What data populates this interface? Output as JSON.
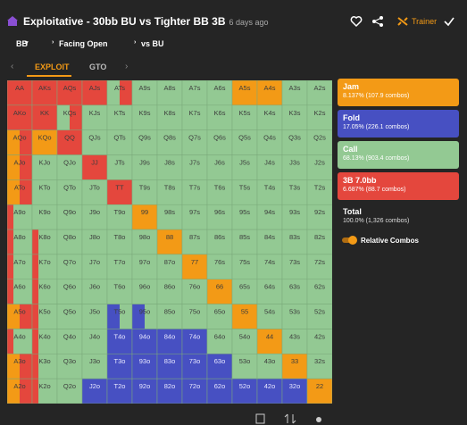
{
  "header": {
    "title": "Exploitative - 30bb BU vs Tighter BB 3B",
    "time": "6 days ago",
    "trainer": "Trainer"
  },
  "filters": [
    "BB",
    "Facing Open",
    "vs BU"
  ],
  "tabs": [
    "EXPLOIT",
    "GTO"
  ],
  "action_colors": {
    "r": "#e4473d",
    "o": "#f39a16",
    "g": "#93c993",
    "f": "#4750c2"
  },
  "grid": {
    "rows": [
      [
        "AA",
        "AKs",
        "AQs",
        "AJs",
        "ATs",
        "A9s",
        "A8s",
        "A7s",
        "A6s",
        "A5s",
        "A4s",
        "A3s",
        "A2s"
      ],
      [
        "AKo",
        "KK",
        "KQs",
        "KJs",
        "KTs",
        "K9s",
        "K8s",
        "K7s",
        "K6s",
        "K5s",
        "K4s",
        "K3s",
        "K2s"
      ],
      [
        "AQo",
        "KQo",
        "QQ",
        "QJs",
        "QTs",
        "Q9s",
        "Q8s",
        "Q7s",
        "Q6s",
        "Q5s",
        "Q4s",
        "Q3s",
        "Q2s"
      ],
      [
        "AJo",
        "KJo",
        "QJo",
        "JJ",
        "JTs",
        "J9s",
        "J8s",
        "J7s",
        "J6s",
        "J5s",
        "J4s",
        "J3s",
        "J2s"
      ],
      [
        "ATo",
        "KTo",
        "QTo",
        "JTo",
        "TT",
        "T9s",
        "T8s",
        "T7s",
        "T6s",
        "T5s",
        "T4s",
        "T3s",
        "T2s"
      ],
      [
        "A9o",
        "K9o",
        "Q9o",
        "J9o",
        "T9o",
        "99",
        "98s",
        "97s",
        "96s",
        "95s",
        "94s",
        "93s",
        "92s"
      ],
      [
        "A8o",
        "K8o",
        "Q8o",
        "J8o",
        "T8o",
        "98o",
        "88",
        "87s",
        "86s",
        "85s",
        "84s",
        "83s",
        "82s"
      ],
      [
        "A7o",
        "K7o",
        "Q7o",
        "J7o",
        "T7o",
        "97o",
        "87o",
        "77",
        "76s",
        "75s",
        "74s",
        "73s",
        "72s"
      ],
      [
        "A6o",
        "K6o",
        "Q6o",
        "J6o",
        "T6o",
        "96o",
        "86o",
        "76o",
        "66",
        "65s",
        "64s",
        "63s",
        "62s"
      ],
      [
        "A5o",
        "K5o",
        "Q5o",
        "J5o",
        "T5o",
        "95o",
        "85o",
        "75o",
        "65o",
        "55",
        "54s",
        "53s",
        "52s"
      ],
      [
        "A4o",
        "K4o",
        "Q4o",
        "J4o",
        "T4o",
        "94o",
        "84o",
        "74o",
        "64o",
        "54o",
        "44",
        "43s",
        "42s"
      ],
      [
        "A3o",
        "K3o",
        "Q3o",
        "J3o",
        "T3o",
        "93o",
        "83o",
        "73o",
        "63o",
        "53o",
        "43o",
        "33",
        "32s"
      ],
      [
        "A2o",
        "K2o",
        "Q2o",
        "J2o",
        "T2o",
        "92o",
        "82o",
        "72o",
        "62o",
        "52o",
        "42o",
        "32o",
        "22"
      ]
    ],
    "actions": [
      [
        "r",
        "r",
        "r",
        "r",
        "ggrr",
        "g",
        "g",
        "g",
        "g",
        "o",
        "o",
        "g",
        "g"
      ],
      [
        "r",
        "r",
        "ggrr",
        "g",
        "g",
        "g",
        "g",
        "g",
        "g",
        "g",
        "g",
        "g",
        "g"
      ],
      [
        "oorr",
        "o",
        "r",
        "g",
        "g",
        "g",
        "g",
        "g",
        "g",
        "g",
        "g",
        "g",
        "g"
      ],
      [
        "oorr",
        "g",
        "g",
        "r",
        "g",
        "g",
        "g",
        "g",
        "g",
        "g",
        "g",
        "g",
        "g"
      ],
      [
        "oorr",
        "g",
        "g",
        "g",
        "r",
        "g",
        "g",
        "g",
        "g",
        "g",
        "g",
        "g",
        "g"
      ],
      [
        "rggg",
        "g",
        "g",
        "g",
        "g",
        "o",
        "g",
        "g",
        "g",
        "g",
        "g",
        "g",
        "g"
      ],
      [
        "rggg",
        "rggg",
        "g",
        "g",
        "g",
        "g",
        "o",
        "g",
        "g",
        "g",
        "g",
        "g",
        "g"
      ],
      [
        "rggg",
        "rggg",
        "g",
        "g",
        "g",
        "g",
        "g",
        "o",
        "g",
        "g",
        "g",
        "g",
        "g"
      ],
      [
        "rggg",
        "rggg",
        "g",
        "g",
        "g",
        "g",
        "g",
        "g",
        "o",
        "g",
        "g",
        "g",
        "g"
      ],
      [
        "oorr",
        "rggg",
        "g",
        "g",
        "ffgg",
        "ffgg",
        "g",
        "g",
        "g",
        "o",
        "g",
        "g",
        "g"
      ],
      [
        "rggg",
        "rggg",
        "g",
        "g",
        "f",
        "f",
        "f",
        "f",
        "g",
        "g",
        "o",
        "g",
        "g"
      ],
      [
        "oorr",
        "rggg",
        "g",
        "g",
        "f",
        "f",
        "f",
        "f",
        "f",
        "g",
        "g",
        "o",
        "g"
      ],
      [
        "oorr",
        "rggg",
        "g",
        "f",
        "f",
        "f",
        "f",
        "f",
        "f",
        "f",
        "f",
        "f",
        "o"
      ]
    ]
  },
  "legend": [
    {
      "name": "Jam",
      "detail": "8.137% (107.9 combos)",
      "color": "#f39a16"
    },
    {
      "name": "Fold",
      "detail": "17.05% (226.1 combos)",
      "color": "#4750c2"
    },
    {
      "name": "Call",
      "detail": "68.13% (903.4 combos)",
      "color": "#93c993"
    },
    {
      "name": "3B 7.0bb",
      "detail": "6.687% (88.7 combos)",
      "color": "#e4473d"
    }
  ],
  "total": {
    "name": "Total",
    "detail": "100.0% (1,326 combos)"
  },
  "toggle": "Relative Combos"
}
